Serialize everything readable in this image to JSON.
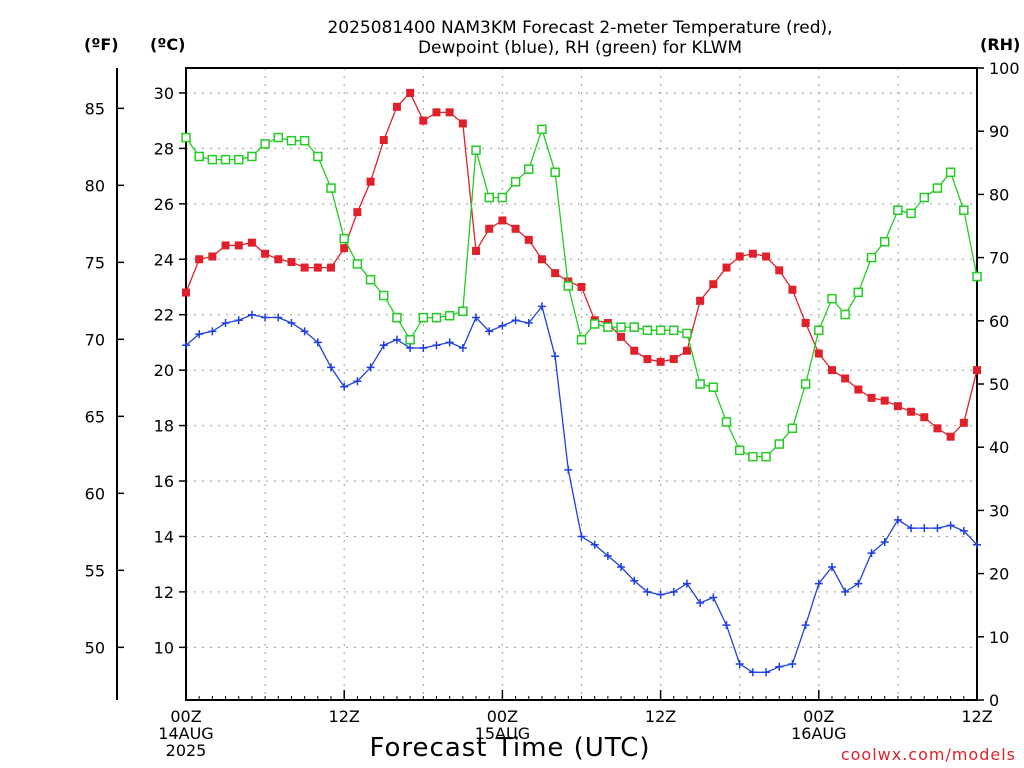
{
  "header": {
    "title_line1": "2025081400 NAM3KM Forecast 2-meter Temperature (red),",
    "title_line2": "Dewpoint (blue), RH (green) for KLWM"
  },
  "units": {
    "fahrenheit": "(ºF)",
    "celsius": "(ºC)",
    "rh": "(RH)"
  },
  "xaxis_title": "Forecast Time (UTC)",
  "credit": "coolwx.com/models",
  "chart_data": {
    "type": "line",
    "title": "2025081400 NAM3KM Forecast 2-meter Temperature (red), Dewpoint (blue), RH (green) for KLWM",
    "xlabel": "Forecast Time (UTC)",
    "x_start": "2025-08-14 00Z",
    "x_step_hours": 1,
    "xlim_hours": [
      0,
      60
    ],
    "grid": true,
    "colors": {
      "temperature": "#e0202a",
      "dewpoint": "#1f3fe0",
      "rh": "#22cc22"
    },
    "y_celsius": {
      "range": [
        8.1,
        30.9
      ],
      "ticks": [
        10,
        12,
        14,
        16,
        18,
        20,
        22,
        24,
        26,
        28,
        30
      ]
    },
    "y_fahrenheit": {
      "ticks": [
        50,
        55,
        60,
        65,
        70,
        75,
        80,
        85
      ]
    },
    "y_rh": {
      "range": [
        0,
        100
      ],
      "ticks": [
        0,
        10,
        20,
        30,
        40,
        50,
        60,
        70,
        80,
        90,
        100
      ]
    },
    "x_ticks": [
      {
        "hour": 0,
        "lines": [
          "00Z",
          "14AUG",
          "2025"
        ]
      },
      {
        "hour": 12,
        "lines": [
          "12Z"
        ]
      },
      {
        "hour": 24,
        "lines": [
          "00Z",
          "15AUG"
        ]
      },
      {
        "hour": 36,
        "lines": [
          "12Z"
        ]
      },
      {
        "hour": 48,
        "lines": [
          "00Z",
          "16AUG"
        ]
      },
      {
        "hour": 60,
        "lines": [
          "12Z"
        ]
      }
    ],
    "series": [
      {
        "name": "Temperature",
        "axis": "celsius",
        "values": [
          22.8,
          24.0,
          24.1,
          24.5,
          24.5,
          24.6,
          24.2,
          24.0,
          23.9,
          23.7,
          23.7,
          23.7,
          24.4,
          25.7,
          26.8,
          28.3,
          29.5,
          30.0,
          29.0,
          29.3,
          29.3,
          28.9,
          24.3,
          25.1,
          25.4,
          25.1,
          24.7,
          24.0,
          23.5,
          23.2,
          23.0,
          21.8,
          21.7,
          21.2,
          20.7,
          20.4,
          20.3,
          20.4,
          20.7,
          22.5,
          23.1,
          23.7,
          24.1,
          24.2,
          24.1,
          23.6,
          22.9,
          21.7,
          20.6,
          20.0,
          19.7,
          19.3,
          19.0,
          18.9,
          18.7,
          18.5,
          18.3,
          17.9,
          17.6,
          18.1,
          20.0
        ]
      },
      {
        "name": "Dewpoint",
        "axis": "celsius",
        "values": [
          20.9,
          21.3,
          21.4,
          21.7,
          21.8,
          22.0,
          21.9,
          21.9,
          21.7,
          21.4,
          21.0,
          20.1,
          19.4,
          19.6,
          20.1,
          20.9,
          21.1,
          20.8,
          20.8,
          20.9,
          21.0,
          20.8,
          21.9,
          21.4,
          21.6,
          21.8,
          21.7,
          22.3,
          20.5,
          16.4,
          14.0,
          13.7,
          13.3,
          12.9,
          12.4,
          12.0,
          11.9,
          12.0,
          12.3,
          11.6,
          11.8,
          10.8,
          9.4,
          9.1,
          9.1,
          9.3,
          9.4,
          10.8,
          12.3,
          12.9,
          12.0,
          12.3,
          13.4,
          13.8,
          14.6,
          14.3,
          14.3,
          14.3,
          14.4,
          14.2,
          13.7
        ]
      },
      {
        "name": "RH",
        "axis": "rh",
        "values": [
          89.0,
          86.0,
          85.5,
          85.5,
          85.5,
          86.0,
          88.0,
          89.0,
          88.5,
          88.5,
          86.0,
          81.0,
          73.0,
          69.0,
          66.5,
          64.0,
          60.5,
          57.0,
          60.5,
          60.5,
          60.8,
          61.5,
          87.0,
          79.5,
          79.5,
          82.0,
          84.0,
          90.3,
          83.5,
          65.5,
          57.0,
          59.5,
          59.0,
          59.0,
          59.0,
          58.5,
          58.5,
          58.5,
          58.0,
          50.0,
          49.5,
          44.0,
          39.5,
          38.5,
          38.5,
          40.5,
          43.0,
          50.0,
          58.5,
          63.5,
          61.0,
          64.5,
          70.0,
          72.5,
          77.5,
          77.0,
          79.5,
          81.0,
          83.5,
          77.5,
          67.0
        ]
      }
    ]
  }
}
